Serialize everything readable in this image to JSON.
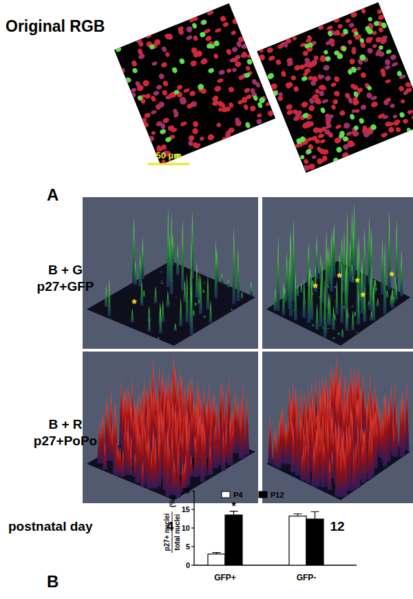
{
  "panel_a": {
    "label": "A",
    "image_title": "Original RGB",
    "scale_bar": "50 µm",
    "rows": [
      {
        "channels": "B + G",
        "stain": "p27+GFP",
        "asterisks": [
          1,
          5
        ]
      },
      {
        "channels": "B + R",
        "stain": "p27+PoPo"
      }
    ],
    "asterisk": "*",
    "column_title": "postnatal day",
    "columns": [
      "4",
      "12"
    ]
  },
  "chart_data": {
    "type": "bar",
    "panel_label": "B",
    "categories": [
      "GFP+",
      "GFP-"
    ],
    "series": [
      {
        "name": "P4",
        "color": "#ffffff",
        "values": [
          3.0,
          13.2
        ],
        "errors": [
          0.4,
          0.6
        ]
      },
      {
        "name": "P12",
        "color": "#000000",
        "values": [
          13.5,
          12.4
        ],
        "errors": [
          1.0,
          2.0
        ]
      }
    ],
    "y_label": {
      "numerator": "p27+ nuclei",
      "denominator": "total nuclei",
      "unit": "(%)"
    },
    "ylim": [
      0,
      20
    ],
    "yticks": [
      0,
      5,
      10,
      15,
      20
    ],
    "legend": "top",
    "annotations": [
      {
        "text": "*",
        "series": "P12",
        "category": "GFP+"
      }
    ]
  }
}
